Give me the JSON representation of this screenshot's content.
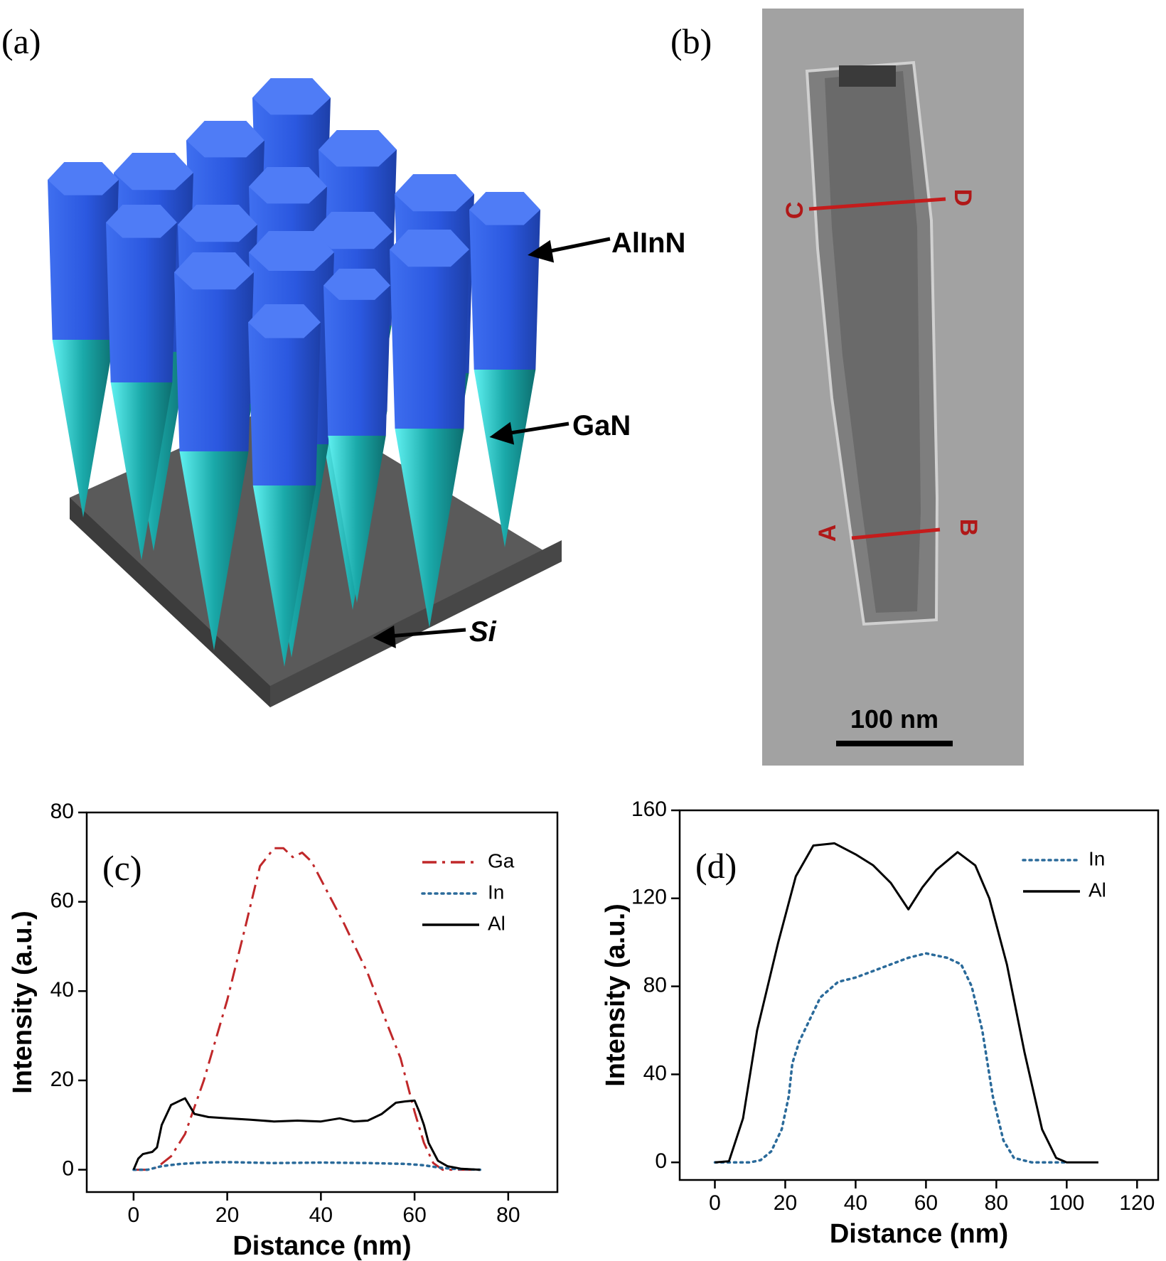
{
  "figure": {
    "panel_a": {
      "label": "(a)",
      "annotations": [
        "AlInN",
        "GaN",
        "Si"
      ]
    },
    "panel_b": {
      "label": "(b)",
      "line_labels": [
        "C",
        "D",
        "A",
        "B"
      ],
      "scale_bar": "100 nm"
    }
  },
  "chart_data": [
    {
      "type": "line",
      "panel_label": "(c)",
      "x_label": "Distance (nm)",
      "y_label": "Intensity (a.u.)",
      "xlim": [
        -10,
        90.5
      ],
      "xticks": [
        0,
        20,
        40,
        60,
        80
      ],
      "ylim": [
        -5,
        80
      ],
      "yticks": [
        0,
        20,
        40,
        60,
        80
      ],
      "legend": "upper right",
      "series": [
        {
          "name": "Ga",
          "color": "#c0282a",
          "line_style": "dashdot",
          "x": [
            0,
            3,
            5,
            8,
            11,
            15,
            20,
            24,
            27,
            30,
            32,
            34,
            36,
            38,
            41,
            45,
            50,
            54,
            57,
            60,
            62,
            64,
            66,
            70,
            74
          ],
          "values": [
            0,
            0,
            0.5,
            3,
            8,
            20,
            38,
            55,
            68,
            72,
            72,
            70,
            71,
            69,
            63,
            55,
            44,
            33,
            25,
            13,
            6,
            1.5,
            0,
            0,
            0
          ]
        },
        {
          "name": "In",
          "color": "#2a6a9a",
          "line_style": "dotted",
          "x": [
            0,
            3,
            6,
            10,
            15,
            20,
            30,
            40,
            50,
            58,
            62,
            65,
            68,
            74
          ],
          "values": [
            0,
            0,
            0.8,
            1.3,
            1.6,
            1.7,
            1.5,
            1.6,
            1.5,
            1.3,
            1,
            0.5,
            0.2,
            0
          ]
        },
        {
          "name": "Al",
          "color": "#000000",
          "line_style": "solid",
          "x": [
            0,
            1,
            2,
            4,
            5,
            6,
            8,
            10,
            11,
            13,
            16,
            20,
            25,
            30,
            35,
            40,
            44,
            47,
            50,
            53,
            56,
            58,
            60,
            61,
            62,
            63,
            65,
            67,
            70,
            74
          ],
          "values": [
            0,
            2.5,
            3.5,
            4,
            5,
            10,
            14.5,
            15.5,
            16,
            12.5,
            11.8,
            11.5,
            11.2,
            10.8,
            11,
            10.8,
            11.5,
            10.8,
            11,
            12.5,
            15,
            15.3,
            15.5,
            13,
            10,
            6,
            2,
            0.8,
            0.2,
            0
          ]
        }
      ]
    },
    {
      "type": "line",
      "panel_label": "(d)",
      "x_label": "Distance (nm)",
      "y_label": "Intensity (a.u.)",
      "xlim": [
        -10,
        126
      ],
      "xticks": [
        0,
        20,
        40,
        60,
        80,
        100,
        120
      ],
      "ylim": [
        -8,
        160
      ],
      "yticks": [
        0,
        40,
        80,
        120,
        160
      ],
      "legend": "upper right",
      "series": [
        {
          "name": "In",
          "color": "#2a6a9a",
          "line_style": "dotted",
          "x": [
            0,
            5,
            10,
            13,
            16,
            19,
            21,
            22,
            24,
            27,
            30,
            35,
            40,
            45,
            50,
            55,
            60,
            66,
            70,
            73,
            76,
            79,
            82,
            85,
            90,
            95,
            100
          ],
          "values": [
            0,
            0,
            0,
            1,
            5,
            15,
            30,
            45,
            55,
            65,
            75,
            82,
            84,
            87,
            90,
            93,
            95,
            93,
            90,
            80,
            60,
            30,
            10,
            2,
            0,
            0,
            0
          ]
        },
        {
          "name": "Al",
          "color": "#000000",
          "line_style": "solid",
          "x": [
            0,
            4,
            8,
            12,
            18,
            23,
            28,
            34,
            40,
            45,
            50,
            55,
            59,
            63,
            69,
            74,
            78,
            83,
            88,
            93,
            97,
            100,
            109
          ],
          "values": [
            0,
            0.5,
            20,
            60,
            100,
            130,
            144,
            145,
            140,
            135,
            127,
            115,
            125,
            133,
            141,
            135,
            120,
            90,
            50,
            15,
            2,
            0,
            0
          ]
        }
      ]
    }
  ]
}
